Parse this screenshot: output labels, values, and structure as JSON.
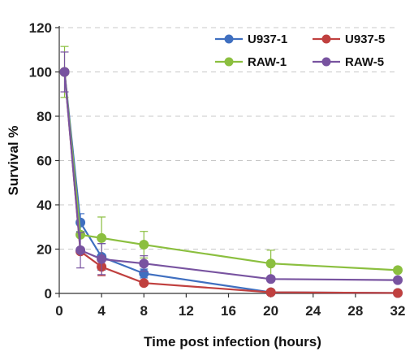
{
  "chart_data": {
    "type": "line",
    "title": "",
    "xlabel": "Time post infection (hours)",
    "ylabel": "Survival %",
    "xlim": [
      0,
      32
    ],
    "ylim": [
      0,
      120
    ],
    "xticks": [
      "0",
      "4",
      "8",
      "12",
      "16",
      "20",
      "24",
      "28",
      "32"
    ],
    "yticks": [
      "0",
      "20",
      "40",
      "60",
      "80",
      "100",
      "120"
    ],
    "grid": "horizontal dashed",
    "legend_position": "top-right",
    "series": [
      {
        "name": "U937-1",
        "color": "#3f6fc0",
        "x": [
          0.5,
          2,
          4,
          8,
          20,
          32
        ],
        "y": [
          100,
          32,
          16.5,
          9,
          0.5,
          0.2
        ],
        "err": [
          0,
          4,
          6,
          2,
          0.5,
          0
        ]
      },
      {
        "name": "U937-5",
        "color": "#c0403f",
        "x": [
          0.5,
          2,
          4,
          8,
          20,
          32
        ],
        "y": [
          100,
          19,
          12,
          4.7,
          0.5,
          0.2
        ],
        "err": [
          0,
          0,
          4,
          0,
          0,
          0
        ]
      },
      {
        "name": "RAW-1",
        "color": "#8bbf3f",
        "x": [
          0.5,
          2,
          4,
          8,
          20,
          32
        ],
        "y": [
          100,
          26.5,
          25,
          22,
          13.5,
          10.5
        ],
        "err": [
          11.5,
          0,
          9.5,
          6,
          6,
          0
        ]
      },
      {
        "name": "RAW-5",
        "color": "#7853a0",
        "x": [
          0.5,
          2,
          4,
          8,
          20,
          32
        ],
        "y": [
          100,
          19.5,
          15.5,
          13.5,
          6.5,
          6
        ],
        "err": [
          9,
          8,
          7,
          3.5,
          1,
          0
        ]
      }
    ]
  }
}
